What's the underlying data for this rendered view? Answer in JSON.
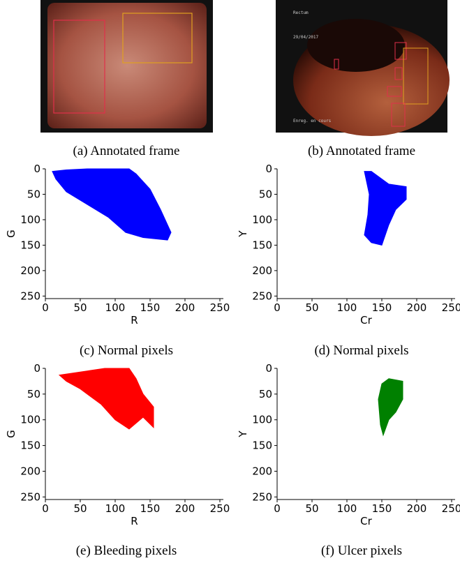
{
  "images": [
    {
      "caption": "(a) Annotated frame"
    },
    {
      "caption": "(b) Annotated frame",
      "overlay_text": [
        "Rectum",
        "29/04/2017",
        "Enreg. en cours"
      ]
    }
  ],
  "chart_data": [
    {
      "type": "scatter",
      "caption": "(c) Normal pixels",
      "xlabel": "R",
      "ylabel": "G",
      "xlim": [
        0,
        255
      ],
      "ylim": [
        255,
        0
      ],
      "xticks": [
        0,
        50,
        100,
        150,
        200,
        250
      ],
      "yticks": [
        0,
        50,
        100,
        150,
        200,
        250
      ],
      "series": [
        {
          "color": "#0000ff",
          "x": [
            10,
            30,
            60,
            120,
            130,
            150,
            165,
            180,
            175,
            140,
            115,
            90,
            60,
            30,
            15
          ],
          "y": [
            5,
            2,
            0,
            0,
            10,
            40,
            80,
            125,
            140,
            135,
            125,
            95,
            70,
            45,
            20
          ]
        }
      ]
    },
    {
      "type": "scatter",
      "caption": "(d) Normal pixels",
      "xlabel": "Cr",
      "ylabel": "Y",
      "xlim": [
        0,
        255
      ],
      "ylim": [
        255,
        0
      ],
      "xticks": [
        0,
        50,
        100,
        150,
        200,
        250
      ],
      "yticks": [
        0,
        50,
        100,
        150,
        200,
        250
      ],
      "series": [
        {
          "color": "#0000ff",
          "x": [
            125,
            135,
            160,
            185,
            185,
            170,
            160,
            150,
            135,
            125,
            130,
            132
          ],
          "y": [
            5,
            5,
            30,
            35,
            60,
            80,
            110,
            150,
            145,
            130,
            90,
            50
          ]
        }
      ]
    },
    {
      "type": "scatter",
      "caption": "(e) Bleeding pixels",
      "xlabel": "R",
      "ylabel": "G",
      "xlim": [
        0,
        255
      ],
      "ylim": [
        255,
        0
      ],
      "xticks": [
        0,
        50,
        100,
        150,
        200,
        250
      ],
      "yticks": [
        0,
        50,
        100,
        150,
        200,
        250
      ],
      "series": [
        {
          "color": "#ff0000",
          "x": [
            20,
            60,
            85,
            120,
            130,
            140,
            155,
            155,
            140,
            120,
            100,
            80,
            50,
            30
          ],
          "y": [
            13,
            5,
            0,
            0,
            20,
            50,
            75,
            115,
            95,
            118,
            100,
            70,
            40,
            25
          ]
        }
      ]
    },
    {
      "type": "scatter",
      "caption": "(f) Ulcer pixels",
      "xlabel": "Cr",
      "ylabel": "Y",
      "xlim": [
        0,
        255
      ],
      "ylim": [
        255,
        0
      ],
      "xticks": [
        0,
        50,
        100,
        150,
        200,
        250
      ],
      "yticks": [
        0,
        50,
        100,
        150,
        200,
        250
      ],
      "series": [
        {
          "color": "#008000",
          "x": [
            160,
            180,
            180,
            170,
            160,
            152,
            148,
            145,
            150
          ],
          "y": [
            20,
            25,
            60,
            85,
            100,
            130,
            110,
            60,
            30
          ]
        }
      ]
    }
  ]
}
